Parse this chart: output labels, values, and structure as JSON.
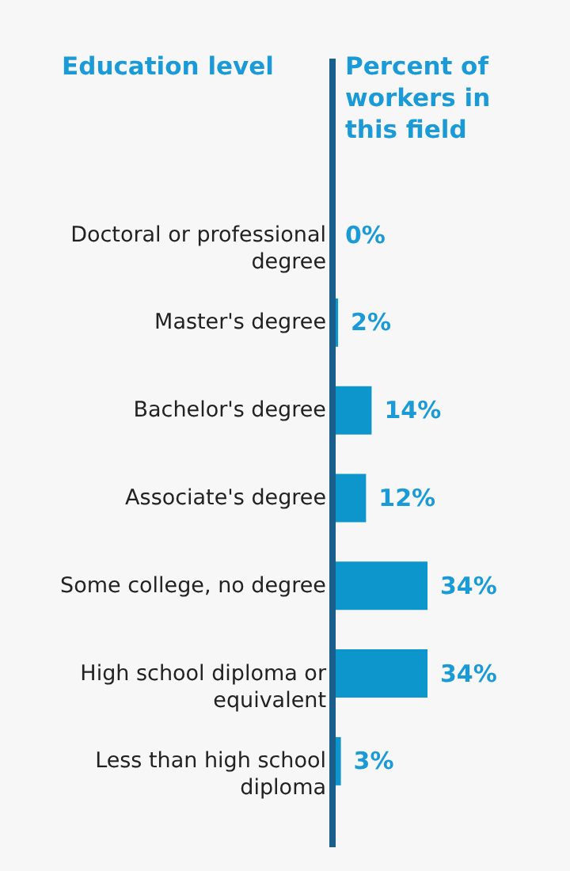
{
  "chart_data": {
    "type": "bar",
    "orientation": "horizontal",
    "ylabel": "Education level",
    "xlabel": "Percent of workers in this field",
    "categories": [
      "Doctoral or professional degree",
      "Master's degree",
      "Bachelor's degree",
      "Associate's degree",
      "Some college, no degree",
      "High school diploma or equivalent",
      "Less than high school diploma"
    ],
    "values": [
      0,
      2,
      14,
      12,
      34,
      34,
      3
    ],
    "value_labels": [
      "0%",
      "2%",
      "14%",
      "12%",
      "34%",
      "34%",
      "3%"
    ],
    "color": "#0d96cc"
  }
}
